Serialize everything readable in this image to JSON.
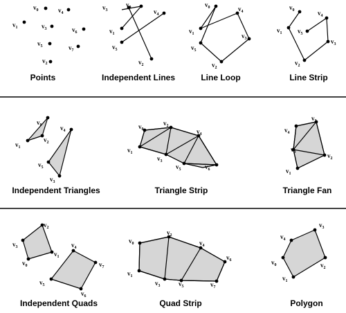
{
  "titles": {
    "points": "Points",
    "independent_lines": "Independent Lines",
    "line_loop": "Line Loop",
    "line_strip": "Line Strip",
    "independent_triangles": "Independent Triangles",
    "triangle_strip": "Triangle Strip",
    "triangle_fan": "Triangle Fan",
    "independent_quads": "Independent Quads",
    "quad_strip": "Quad Strip",
    "polygon": "Polygon"
  },
  "vertex_letter": "v",
  "indices": [
    "0",
    "1",
    "2",
    "3",
    "4",
    "5",
    "6",
    "7"
  ],
  "colors": {
    "stroke": "#000000",
    "fill": "#d6d6d6",
    "background": "#ffffff"
  }
}
